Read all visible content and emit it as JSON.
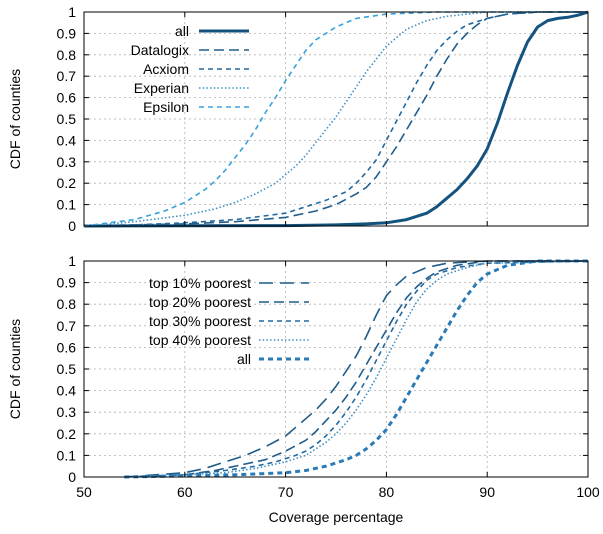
{
  "chart_data": [
    {
      "type": "line",
      "xlabel": "",
      "ylabel": "CDF of counties",
      "xlim": [
        50,
        100
      ],
      "ylim": [
        0,
        1
      ],
      "x_ticks": [
        50,
        60,
        70,
        80,
        90,
        100
      ],
      "y_ticks": [
        0,
        0.1,
        0.2,
        0.3,
        0.4,
        0.5,
        0.6,
        0.7,
        0.8,
        0.9,
        1
      ],
      "grid": true,
      "legend_position": "top-left",
      "series": [
        {
          "name": "all",
          "color": "#14537f",
          "dash": "solid",
          "width": 3,
          "x": [
            50,
            70,
            75,
            78,
            80,
            82,
            84,
            85,
            86,
            87,
            88,
            89,
            90,
            91,
            92,
            93,
            94,
            95,
            96,
            97,
            98,
            99,
            100
          ],
          "y": [
            0,
            0.002,
            0.005,
            0.01,
            0.015,
            0.03,
            0.06,
            0.09,
            0.13,
            0.17,
            0.22,
            0.28,
            0.36,
            0.48,
            0.62,
            0.75,
            0.86,
            0.93,
            0.96,
            0.97,
            0.975,
            0.985,
            1.0
          ]
        },
        {
          "name": "Datalogix",
          "color": "#1f5d8c",
          "dash": "dashed",
          "width": 1.6,
          "x": [
            50,
            55,
            60,
            65,
            70,
            73,
            75,
            77,
            78,
            79,
            80,
            81,
            82,
            83,
            84,
            85,
            86,
            87,
            88,
            89,
            90,
            92,
            95,
            100
          ],
          "y": [
            0,
            0.005,
            0.01,
            0.02,
            0.04,
            0.07,
            0.1,
            0.15,
            0.18,
            0.23,
            0.3,
            0.37,
            0.45,
            0.53,
            0.61,
            0.7,
            0.78,
            0.85,
            0.9,
            0.94,
            0.97,
            0.99,
            1.0,
            1.0
          ]
        },
        {
          "name": "Acxiom",
          "color": "#2169a0",
          "dash": "short-dashed",
          "width": 1.6,
          "x": [
            50,
            55,
            60,
            65,
            70,
            72,
            74,
            76,
            77,
            78,
            79,
            80,
            81,
            82,
            83,
            84,
            85,
            86,
            87,
            88,
            90,
            92,
            95,
            100
          ],
          "y": [
            0,
            0.005,
            0.015,
            0.03,
            0.06,
            0.09,
            0.12,
            0.16,
            0.2,
            0.25,
            0.31,
            0.4,
            0.49,
            0.58,
            0.67,
            0.75,
            0.82,
            0.87,
            0.91,
            0.94,
            0.97,
            0.99,
            1.0,
            1.0
          ]
        },
        {
          "name": "Experian",
          "color": "#3d8fc6",
          "dash": "dotted",
          "width": 1.6,
          "x": [
            50,
            55,
            60,
            63,
            65,
            67,
            69,
            70,
            71,
            72,
            73,
            74,
            75,
            76,
            77,
            78,
            79,
            80,
            82,
            84,
            86,
            90,
            100
          ],
          "y": [
            0,
            0.02,
            0.05,
            0.08,
            0.11,
            0.15,
            0.2,
            0.24,
            0.28,
            0.33,
            0.39,
            0.45,
            0.51,
            0.58,
            0.65,
            0.72,
            0.78,
            0.84,
            0.92,
            0.96,
            0.98,
            1.0,
            1.0
          ]
        },
        {
          "name": "Epsilon",
          "color": "#38a1dc",
          "dash": "short-dashed",
          "width": 1.6,
          "x": [
            50,
            55,
            58,
            60,
            62,
            63,
            64,
            65,
            66,
            67,
            68,
            69,
            70,
            71,
            72,
            73,
            75,
            77,
            80,
            85,
            90,
            100
          ],
          "y": [
            0,
            0.03,
            0.07,
            0.11,
            0.17,
            0.21,
            0.26,
            0.32,
            0.38,
            0.45,
            0.53,
            0.6,
            0.68,
            0.75,
            0.82,
            0.87,
            0.93,
            0.97,
            0.99,
            1.0,
            1.0,
            1.0
          ]
        }
      ]
    },
    {
      "type": "line",
      "xlabel": "Coverage percentage",
      "ylabel": "CDF of counties",
      "xlim": [
        50,
        100
      ],
      "ylim": [
        0,
        1
      ],
      "x_ticks": [
        50,
        60,
        70,
        80,
        90,
        100
      ],
      "y_ticks": [
        0,
        0.1,
        0.2,
        0.3,
        0.4,
        0.5,
        0.6,
        0.7,
        0.8,
        0.9,
        1
      ],
      "grid": true,
      "legend_position": "top-left",
      "series": [
        {
          "name": "top 10% poorest",
          "color": "#1e5c8a",
          "dash": "long-dashed",
          "width": 1.6,
          "x": [
            54,
            60,
            62,
            64,
            66,
            68,
            70,
            71,
            72,
            73,
            74,
            75,
            76,
            77,
            78,
            79,
            80,
            81,
            82,
            83,
            84,
            86,
            90,
            100
          ],
          "y": [
            0,
            0.02,
            0.04,
            0.07,
            0.1,
            0.14,
            0.19,
            0.23,
            0.27,
            0.31,
            0.36,
            0.42,
            0.49,
            0.56,
            0.65,
            0.75,
            0.84,
            0.89,
            0.93,
            0.95,
            0.97,
            0.99,
            1.0,
            1.0
          ]
        },
        {
          "name": "top 20% poorest",
          "color": "#1f5d8c",
          "dash": "dashed",
          "width": 1.6,
          "x": [
            54,
            60,
            63,
            66,
            68,
            70,
            72,
            73,
            74,
            75,
            76,
            77,
            78,
            79,
            80,
            81,
            82,
            83,
            84,
            85,
            87,
            90,
            100
          ],
          "y": [
            0,
            0.01,
            0.03,
            0.06,
            0.08,
            0.12,
            0.17,
            0.21,
            0.26,
            0.31,
            0.37,
            0.44,
            0.52,
            0.6,
            0.68,
            0.76,
            0.83,
            0.88,
            0.92,
            0.95,
            0.98,
            1.0,
            1.0
          ]
        },
        {
          "name": "top 30% poorest",
          "color": "#2169a0",
          "dash": "short-dashed",
          "width": 1.6,
          "x": [
            54,
            60,
            64,
            67,
            69,
            71,
            72,
            73,
            74,
            75,
            76,
            77,
            78,
            79,
            80,
            81,
            82,
            83,
            84,
            85,
            87,
            90,
            100
          ],
          "y": [
            0,
            0.01,
            0.03,
            0.05,
            0.07,
            0.1,
            0.12,
            0.15,
            0.19,
            0.24,
            0.3,
            0.37,
            0.45,
            0.54,
            0.63,
            0.72,
            0.8,
            0.86,
            0.91,
            0.94,
            0.97,
            0.99,
            1.0
          ]
        },
        {
          "name": "top 40% poorest",
          "color": "#3d8fc6",
          "dash": "dotted",
          "width": 1.6,
          "x": [
            54,
            60,
            64,
            67,
            70,
            72,
            73,
            74,
            75,
            76,
            77,
            78,
            79,
            80,
            81,
            82,
            83,
            84,
            85,
            86,
            88,
            90,
            100
          ],
          "y": [
            0,
            0.01,
            0.02,
            0.04,
            0.07,
            0.1,
            0.13,
            0.16,
            0.2,
            0.25,
            0.31,
            0.38,
            0.46,
            0.55,
            0.64,
            0.73,
            0.81,
            0.87,
            0.91,
            0.94,
            0.97,
            0.99,
            1.0
          ]
        },
        {
          "name": "all",
          "color": "#2a7ab8",
          "dash": "short-dashed",
          "width": 3,
          "x": [
            54,
            60,
            65,
            70,
            72,
            74,
            76,
            77,
            78,
            79,
            80,
            81,
            82,
            83,
            84,
            85,
            86,
            87,
            88,
            89,
            90,
            92,
            95,
            100
          ],
          "y": [
            0,
            0.005,
            0.01,
            0.02,
            0.03,
            0.05,
            0.08,
            0.1,
            0.13,
            0.17,
            0.22,
            0.29,
            0.37,
            0.45,
            0.53,
            0.61,
            0.69,
            0.77,
            0.84,
            0.9,
            0.94,
            0.98,
            1.0,
            1.0
          ]
        }
      ]
    }
  ]
}
